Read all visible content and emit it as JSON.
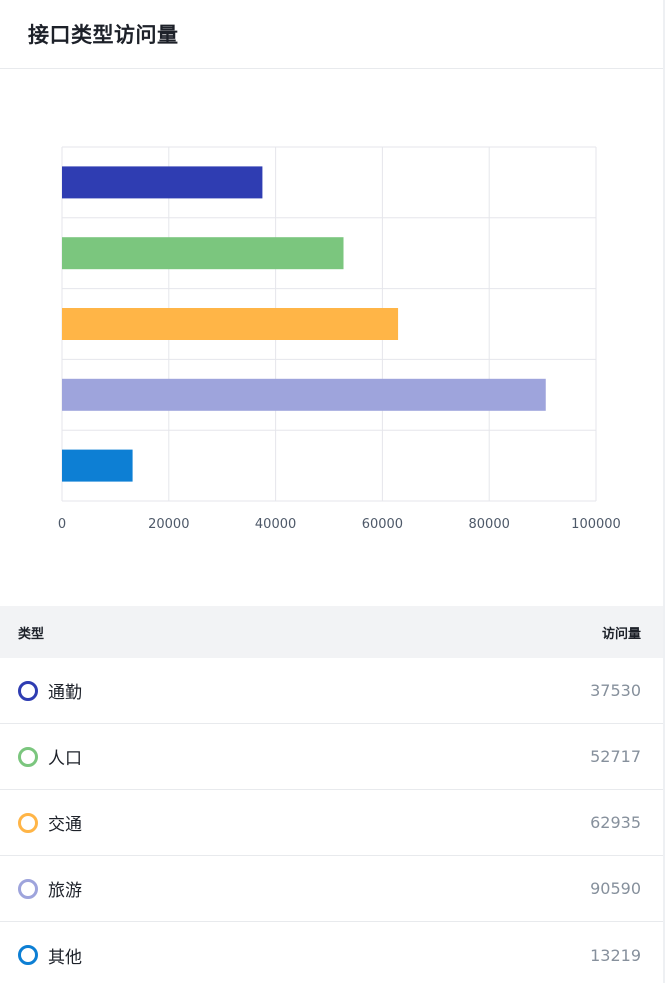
{
  "header": {
    "title": "接口类型访问量"
  },
  "chart_data": {
    "type": "bar",
    "orientation": "horizontal",
    "categories": [
      "通勤",
      "人口",
      "交通",
      "旅游",
      "其他"
    ],
    "values": [
      37530,
      52717,
      62935,
      90590,
      13219
    ],
    "colors": [
      "#2f3db2",
      "#7bc67e",
      "#ffb547",
      "#9ea4dc",
      "#0d7fd4"
    ],
    "xlim": [
      0,
      100000
    ],
    "xticks": [
      "0",
      "20000",
      "40000",
      "60000",
      "80000",
      "100000"
    ],
    "grid": true,
    "legend": "none"
  },
  "table": {
    "head_type": "类型",
    "head_value": "访问量",
    "rows": [
      {
        "name": "通勤",
        "value": "37530",
        "color": "#2f3db2"
      },
      {
        "name": "人口",
        "value": "52717",
        "color": "#7bc67e"
      },
      {
        "name": "交通",
        "value": "62935",
        "color": "#ffb547"
      },
      {
        "name": "旅游",
        "value": "90590",
        "color": "#9ea4dc"
      },
      {
        "name": "其他",
        "value": "13219",
        "color": "#0d7fd4"
      }
    ]
  }
}
